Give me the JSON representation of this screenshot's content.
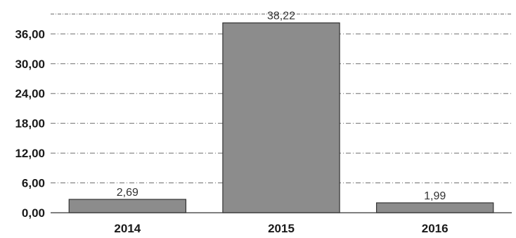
{
  "chart_data": {
    "type": "bar",
    "title": "",
    "xlabel": "",
    "ylabel": "",
    "categories": [
      "2014",
      "2015",
      "2016"
    ],
    "values": [
      2.69,
      38.22,
      1.99
    ],
    "value_labels": [
      "2,69",
      "38,22",
      "1,99"
    ],
    "yticks": [
      0,
      6,
      12,
      18,
      24,
      30,
      36
    ],
    "ytick_labels": [
      "0,00",
      "6,00",
      "12,00",
      "18,00",
      "24,00",
      "30,00",
      "36,00"
    ],
    "ylim": [
      0,
      40
    ],
    "grid": true,
    "legend": "none",
    "colors": {
      "bar": "#8c8c8c",
      "bar_edge": "#333333",
      "grid": "#555555"
    }
  }
}
